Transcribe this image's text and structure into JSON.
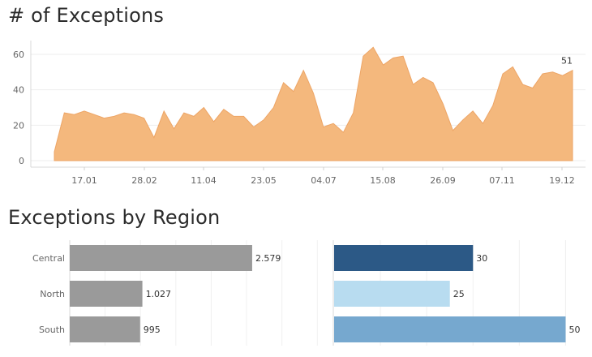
{
  "titles": {
    "exceptions": "# of Exceptions",
    "by_region": "Exceptions by Region"
  },
  "chart_data": [
    {
      "type": "area",
      "title": "# of Exceptions",
      "color": "#f4b87d",
      "y_ticks": [
        "0",
        "20",
        "40",
        "60"
      ],
      "ylim": [
        0,
        66
      ],
      "x_ticks": [
        "17.01",
        "28.02",
        "11.04",
        "23.05",
        "04.07",
        "15.08",
        "26.09",
        "07.11",
        "19.12"
      ],
      "values": [
        5,
        27,
        26,
        28,
        26,
        24,
        25,
        27,
        26,
        24,
        13,
        28,
        18,
        27,
        25,
        30,
        22,
        29,
        25,
        25,
        19,
        23,
        30,
        44,
        39,
        51,
        38,
        19,
        21,
        16,
        27,
        59,
        64,
        54,
        58,
        59,
        43,
        47,
        44,
        32,
        17,
        23,
        28,
        21,
        31,
        49,
        53,
        43,
        41,
        49,
        50,
        48,
        51
      ],
      "last_label": "51"
    },
    {
      "type": "bar",
      "orientation": "horizontal",
      "categories": [
        "Central",
        "North",
        "South"
      ],
      "values": [
        2579,
        1027,
        995
      ],
      "labels": [
        "2.579",
        "1.027",
        "995"
      ],
      "xlim": [
        0,
        3600
      ],
      "color": "#9a9a9a"
    },
    {
      "type": "bar",
      "orientation": "horizontal",
      "categories": [
        "Central",
        "North",
        "South"
      ],
      "values": [
        30,
        25,
        50
      ],
      "labels": [
        "30",
        "25",
        "50"
      ],
      "xlim": [
        0,
        55
      ],
      "colors": [
        "#2c5986",
        "#b8dcf0",
        "#76a8cf"
      ]
    }
  ]
}
